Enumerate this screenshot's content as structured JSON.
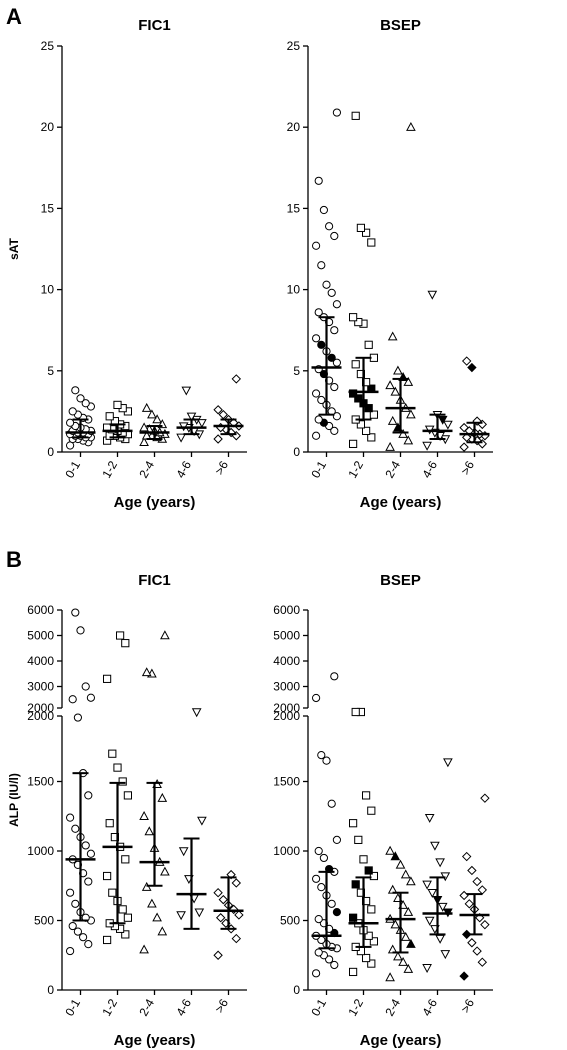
{
  "figure": {
    "panel_a_letter": "A",
    "panel_b_letter": "B"
  },
  "chart_data": [
    {
      "id": "A-FIC1",
      "type": "scatter",
      "title": "FIC1",
      "xlabel": "Age (years)",
      "ylabel": "sAT",
      "categories": [
        "0-1",
        "1-2",
        "2-4",
        "4-6",
        ">6"
      ],
      "markers": [
        "circle",
        "square",
        "triangle",
        "triangle-down",
        "diamond"
      ],
      "yticks": [
        0,
        5,
        10,
        15,
        20,
        25
      ],
      "ylim": [
        0,
        25
      ],
      "median": [
        1.2,
        1.3,
        1.2,
        1.5,
        1.6
      ],
      "iqr": [
        [
          0.9,
          2.0
        ],
        [
          0.9,
          1.7
        ],
        [
          0.8,
          1.6
        ],
        [
          1.1,
          2.0
        ],
        [
          1.1,
          2.0
        ]
      ],
      "points": [
        [
          0.4,
          0.6,
          0.7,
          0.8,
          0.8,
          0.9,
          0.9,
          1.0,
          1.0,
          1.1,
          1.1,
          1.2,
          1.2,
          1.3,
          1.3,
          1.4,
          1.5,
          1.6,
          1.8,
          2.0,
          2.1,
          2.3,
          2.5,
          2.8,
          3.0,
          3.3,
          3.8
        ],
        [
          0.7,
          0.8,
          0.9,
          1.0,
          1.0,
          1.1,
          1.2,
          1.3,
          1.4,
          1.5,
          1.6,
          1.7,
          1.9,
          2.2,
          2.5,
          2.7,
          2.9
        ],
        [
          0.6,
          0.8,
          0.9,
          1.0,
          1.0,
          1.1,
          1.2,
          1.3,
          1.4,
          1.5,
          1.7,
          2.0,
          2.3,
          2.7
        ],
        [
          0.9,
          1.1,
          1.3,
          1.5,
          1.6,
          1.8,
          2.0,
          2.2,
          3.8
        ],
        [
          0.8,
          1.0,
          1.2,
          1.4,
          1.5,
          1.6,
          1.8,
          2.0,
          2.3,
          2.6,
          4.5
        ]
      ],
      "filled": [
        [],
        [],
        [],
        [],
        []
      ]
    },
    {
      "id": "A-BSEP",
      "type": "scatter",
      "title": "BSEP",
      "xlabel": "Age (years)",
      "ylabel": "",
      "categories": [
        "0-1",
        "1-2",
        "2-4",
        "4-6",
        ">6"
      ],
      "markers": [
        "circle",
        "square",
        "triangle",
        "triangle-down",
        "diamond"
      ],
      "yticks": [
        0,
        5,
        10,
        15,
        20,
        25
      ],
      "ylim": [
        0,
        25
      ],
      "median": [
        5.2,
        3.7,
        2.7,
        1.3,
        1.1
      ],
      "iqr": [
        [
          2.3,
          8.3
        ],
        [
          2.0,
          5.8
        ],
        [
          1.2,
          4.5
        ],
        [
          0.8,
          2.3
        ],
        [
          0.6,
          1.8
        ]
      ],
      "points": [
        [
          1.0,
          1.3,
          1.6,
          1.8,
          2.0,
          2.2,
          2.5,
          2.9,
          3.2,
          3.6,
          4.0,
          4.4,
          4.8,
          5.1,
          5.5,
          5.8,
          6.2,
          6.6,
          7.0,
          7.5,
          8.0,
          8.3,
          8.6,
          9.1,
          9.8,
          10.3,
          11.5,
          12.7,
          13.3,
          13.9,
          14.9,
          16.7,
          20.9
        ],
        [
          0.5,
          0.9,
          1.3,
          1.7,
          2.0,
          2.3,
          2.7,
          3.0,
          3.3,
          3.6,
          3.9,
          4.3,
          4.8,
          5.4,
          5.8,
          6.6,
          7.9,
          8.0,
          8.3,
          12.9,
          13.5,
          13.8,
          20.7
        ],
        [
          0.3,
          0.7,
          1.1,
          1.5,
          1.9,
          2.3,
          2.7,
          3.2,
          3.7,
          4.1,
          4.3,
          4.6,
          5.0,
          7.1,
          20.0
        ],
        [
          0.4,
          0.8,
          1.0,
          1.2,
          1.4,
          1.7,
          2.0,
          2.3,
          9.7
        ],
        [
          0.3,
          0.5,
          0.7,
          0.8,
          0.9,
          1.0,
          1.1,
          1.2,
          1.3,
          1.5,
          1.7,
          1.9,
          5.2,
          5.6
        ]
      ],
      "filled": [
        [
          1.8,
          4.8,
          5.8,
          6.6
        ],
        [
          2.7,
          3.0,
          3.3,
          3.6,
          3.9
        ],
        [
          1.5,
          4.6
        ],
        [
          2.0
        ],
        [
          5.2
        ]
      ]
    },
    {
      "id": "B-FIC1",
      "type": "scatter",
      "title": "FIC1",
      "xlabel": "Age (years)",
      "ylabel": "ALP (IU/l)",
      "categories": [
        "0-1",
        "1-2",
        "2-4",
        "4-6",
        ">6"
      ],
      "markers": [
        "circle",
        "square",
        "triangle",
        "triangle-down",
        "diamond"
      ],
      "yticks_lower": [
        0,
        500,
        1000,
        1500,
        2000
      ],
      "yticks_upper": [
        2000,
        3000,
        4000,
        5000,
        6000
      ],
      "ylim": [
        0,
        6000
      ],
      "axis_break": 2000,
      "median": [
        940,
        1030,
        920,
        690,
        570
      ],
      "iqr": [
        [
          500,
          1560
        ],
        [
          480,
          1490
        ],
        [
          750,
          1490
        ],
        [
          440,
          1090
        ],
        [
          440,
          810
        ]
      ],
      "points": [
        [
          280,
          330,
          380,
          420,
          460,
          500,
          520,
          560,
          620,
          700,
          780,
          840,
          900,
          940,
          980,
          1040,
          1100,
          1160,
          1240,
          1400,
          1560,
          1960,
          2500,
          2560,
          3000,
          5200,
          5900
        ],
        [
          360,
          400,
          440,
          460,
          480,
          520,
          580,
          640,
          700,
          820,
          940,
          1030,
          1100,
          1200,
          1400,
          1500,
          1600,
          1700,
          3300,
          4700,
          5000
        ],
        [
          290,
          420,
          520,
          620,
          740,
          850,
          920,
          1020,
          1140,
          1250,
          1380,
          1480,
          3500,
          3550,
          5000
        ],
        [
          540,
          560,
          660,
          800,
          1000,
          1220,
          2000
        ],
        [
          250,
          370,
          440,
          480,
          520,
          540,
          580,
          610,
          650,
          700,
          770,
          830
        ]
      ],
      "filled": [
        [],
        [],
        [],
        [],
        []
      ]
    },
    {
      "id": "B-BSEP",
      "type": "scatter",
      "title": "BSEP",
      "xlabel": "Age (years)",
      "ylabel": "",
      "categories": [
        "0-1",
        "1-2",
        "2-4",
        "4-6",
        ">6"
      ],
      "markers": [
        "circle",
        "square",
        "triangle",
        "triangle-down",
        "diamond"
      ],
      "yticks_lower": [
        0,
        500,
        1000,
        1500,
        2000
      ],
      "yticks_upper": [
        2000,
        3000,
        4000,
        5000,
        6000
      ],
      "ylim": [
        0,
        6000
      ],
      "axis_break": 2000,
      "median": [
        390,
        480,
        510,
        550,
        540
      ],
      "iqr": [
        [
          300,
          850
        ],
        [
          310,
          810
        ],
        [
          270,
          700
        ],
        [
          400,
          810
        ],
        [
          400,
          690
        ]
      ],
      "points": [
        [
          120,
          180,
          220,
          250,
          270,
          300,
          310,
          330,
          360,
          390,
          410,
          440,
          480,
          510,
          560,
          620,
          680,
          740,
          800,
          850,
          870,
          950,
          1000,
          1080,
          1340,
          1650,
          1690,
          2550,
          3400
        ],
        [
          130,
          190,
          230,
          280,
          310,
          350,
          390,
          430,
          480,
          520,
          580,
          640,
          700,
          760,
          820,
          860,
          940,
          1080,
          1200,
          1290,
          1400,
          2000,
          2000
        ],
        [
          90,
          150,
          200,
          240,
          290,
          330,
          380,
          430,
          470,
          510,
          560,
          610,
          660,
          720,
          780,
          830,
          900,
          960,
          1000
        ],
        [
          160,
          260,
          370,
          440,
          500,
          560,
          600,
          650,
          700,
          760,
          820,
          920,
          1040,
          1240,
          1640
        ],
        [
          100,
          200,
          280,
          340,
          400,
          470,
          520,
          580,
          620,
          680,
          720,
          780,
          860,
          960,
          1380
        ]
      ],
      "filled": [
        [
          410,
          560,
          870
        ],
        [
          470,
          520,
          760,
          860
        ],
        [
          330,
          960
        ],
        [
          560,
          650
        ],
        [
          100,
          400
        ]
      ]
    }
  ]
}
